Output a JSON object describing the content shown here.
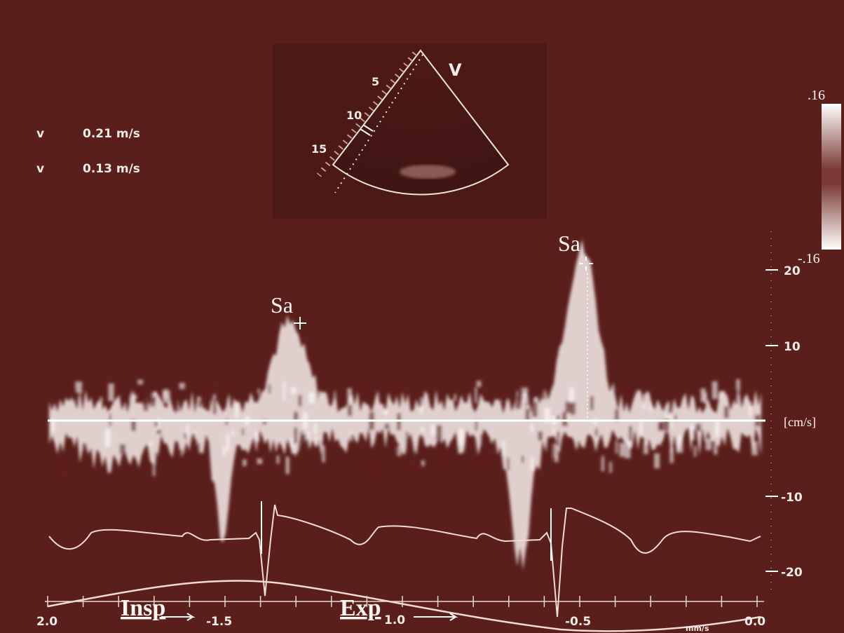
{
  "measurements": [
    {
      "label": "v",
      "value": "0.21 m/s"
    },
    {
      "label": "v",
      "value": "0.13 m/s"
    }
  ],
  "sector": {
    "view": "V",
    "depths": [
      "5",
      "10",
      "15"
    ]
  },
  "color_scale": {
    "top": ".16",
    "bottom": "-.16"
  },
  "annotations": [
    "Sa",
    "Sa"
  ],
  "velocity_scale": {
    "labels": [
      "20",
      "10",
      "[cm/s]",
      "-10",
      "-20"
    ]
  },
  "time_scale": {
    "labels": [
      "2.0",
      "-1.5",
      "1.0",
      "-0.5",
      "0.0"
    ],
    "unit": "mm/s"
  },
  "respiration": [
    "Insp",
    "Exp"
  ]
}
